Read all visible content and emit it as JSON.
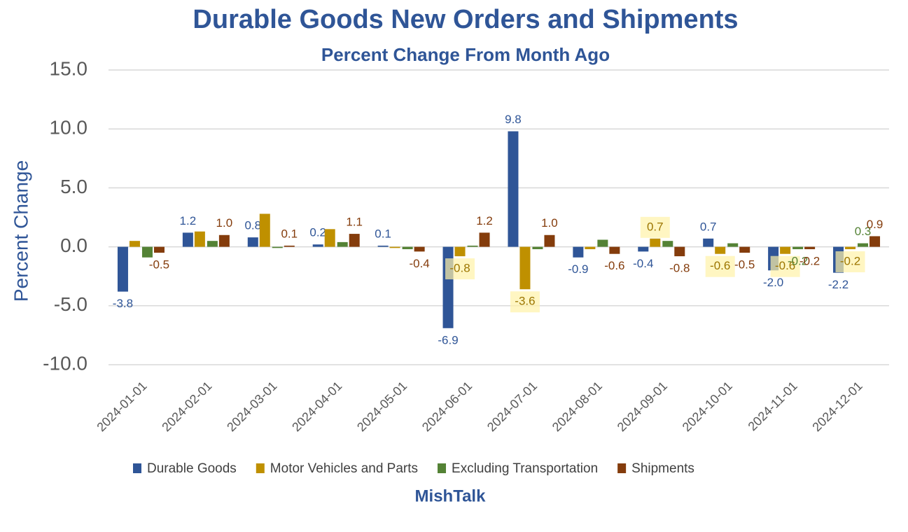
{
  "chart_data": {
    "type": "bar",
    "title": "Durable Goods New Orders and Shipments",
    "subtitle": "Percent Change From Month Ago",
    "y_label": "Percent Change",
    "footer": "MishTalk",
    "categories": [
      "2024-01-01",
      "2024-02-01",
      "2024-03-01",
      "2024-04-01",
      "2024-05-01",
      "2024-06-01",
      "2024-07-01",
      "2024-08-01",
      "2024-09-01",
      "2024-10-01",
      "2024-11-01",
      "2024-12-01"
    ],
    "series": [
      {
        "name": "Durable Goods",
        "color": "#2f5597",
        "values": [
          -3.8,
          1.2,
          0.8,
          0.2,
          0.1,
          -6.9,
          9.8,
          -0.9,
          -0.4,
          0.7,
          -2.0,
          -2.2
        ],
        "value_labels": [
          "-3.8",
          "1.2",
          "0.8",
          "0.2",
          "0.1",
          "-6.9",
          "9.8",
          "-0.9",
          "-0.4",
          "0.7",
          "-2.0",
          "-2.2"
        ]
      },
      {
        "name": "Motor Vehicles and Parts",
        "color": "#bf9000",
        "values": [
          0.5,
          1.3,
          2.8,
          1.5,
          -0.1,
          -0.8,
          -3.6,
          -0.2,
          0.7,
          -0.6,
          -0.6,
          -0.2
        ],
        "value_labels": [
          null,
          null,
          null,
          null,
          null,
          "-0.8",
          "-3.6",
          null,
          "0.7",
          "-0.6",
          "-0.6",
          "-0.2"
        ]
      },
      {
        "name": "Excluding Transportation",
        "color": "#548235",
        "values": [
          -0.9,
          0.5,
          -0.1,
          0.4,
          -0.2,
          0.1,
          -0.2,
          0.6,
          0.5,
          0.3,
          -0.2,
          0.3
        ],
        "value_labels": [
          null,
          null,
          null,
          null,
          null,
          null,
          null,
          null,
          null,
          null,
          "-0.2",
          "0.3"
        ]
      },
      {
        "name": "Shipments",
        "color": "#843c0c",
        "values": [
          -0.5,
          1.0,
          0.1,
          1.1,
          -0.4,
          1.2,
          1.0,
          -0.6,
          -0.8,
          -0.5,
          -0.2,
          0.9
        ],
        "value_labels": [
          "-0.5",
          "1.0",
          "0.1",
          "1.1",
          "-0.4",
          "1.2",
          "1.0",
          "-0.6",
          "-0.8",
          "-0.5",
          "-0.2",
          "0.9"
        ]
      }
    ],
    "ylim": [
      -10,
      15
    ],
    "yticks": [
      {
        "value": -10,
        "label": "-10.0"
      },
      {
        "value": -5,
        "label": "-5.0"
      },
      {
        "value": 0,
        "label": "0.0"
      },
      {
        "value": 5,
        "label": "5.0"
      },
      {
        "value": 10,
        "label": "10.0"
      },
      {
        "value": 15,
        "label": "15.0"
      }
    ],
    "grid": true
  }
}
